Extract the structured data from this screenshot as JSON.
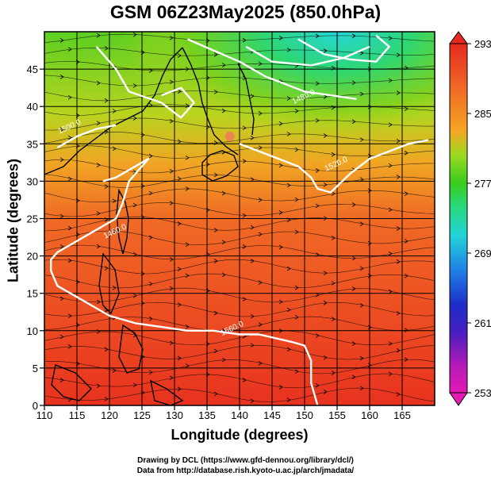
{
  "title": "GSM 06Z23May2025 (850.0hPa)",
  "chart_data": {
    "type": "heatmap",
    "title": "GSM 06Z23May2025 (850.0hPa)",
    "xlabel": "Longitude (degrees)",
    "ylabel": "Latitude  (degrees)",
    "xlim": [
      110,
      170
    ],
    "ylim": [
      0,
      50
    ],
    "x_ticks": [
      110,
      115,
      120,
      125,
      130,
      135,
      140,
      145,
      150,
      155,
      160,
      165
    ],
    "y_ticks": [
      0,
      5,
      10,
      15,
      20,
      25,
      30,
      35,
      40,
      45
    ],
    "colorbar": {
      "min": 253,
      "max": 293,
      "ticks": [
        253,
        261,
        269,
        277,
        285,
        293
      ],
      "colors": [
        "#e619b3",
        "#7a1fb8",
        "#1d2cc8",
        "#1f8fe6",
        "#22d3d8",
        "#27d97e",
        "#38cc1e",
        "#9bd91f",
        "#e6e61f",
        "#f5a623",
        "#f06a25",
        "#e62a1f"
      ]
    },
    "contour_labels": [
      {
        "text": "1460.0",
        "lon": 121,
        "lat": 23
      },
      {
        "text": "1520.0",
        "lon": 155,
        "lat": 32
      },
      {
        "text": "1480.0",
        "lon": 150,
        "lat": 41
      },
      {
        "text": "1500.0",
        "lon": 114,
        "lat": 37
      },
      {
        "text": "1560.0",
        "lon": 139,
        "lat": 10
      }
    ],
    "contours": [
      {
        "points": [
          [
            118,
            48
          ],
          [
            121,
            45
          ],
          [
            123,
            42
          ],
          [
            128,
            40.5
          ],
          [
            131,
            38.5
          ],
          [
            133,
            40.5
          ],
          [
            131,
            42.5
          ],
          [
            128,
            41.5
          ]
        ]
      },
      {
        "points": [
          [
            132,
            49
          ],
          [
            136,
            47.5
          ],
          [
            140,
            46
          ],
          [
            144,
            44
          ],
          [
            147,
            43
          ],
          [
            150,
            42
          ],
          [
            154,
            41.5
          ],
          [
            158,
            41
          ]
        ]
      },
      {
        "points": [
          [
            141,
            48
          ],
          [
            145,
            46
          ],
          [
            151,
            45.5
          ],
          [
            156,
            46.5
          ],
          [
            160,
            48
          ]
        ]
      },
      {
        "points": [
          [
            149,
            49
          ],
          [
            153,
            47
          ],
          [
            157,
            46.3
          ],
          [
            161,
            46
          ],
          [
            163,
            48
          ],
          [
            161,
            49.5
          ]
        ]
      },
      {
        "points": [
          [
            140,
            35
          ],
          [
            143,
            34
          ],
          [
            146,
            33
          ],
          [
            149,
            32
          ],
          [
            151,
            30.5
          ],
          [
            152,
            29
          ],
          [
            154,
            28.5
          ],
          [
            157,
            31
          ],
          [
            160,
            33
          ],
          [
            163,
            34
          ],
          [
            166,
            35
          ],
          [
            169,
            35.5
          ]
        ]
      },
      {
        "points": [
          [
            119,
            30
          ],
          [
            121,
            30.5
          ],
          [
            124,
            32
          ],
          [
            126,
            33
          ],
          [
            123,
            30
          ],
          [
            122,
            27
          ],
          [
            121,
            25
          ],
          [
            117,
            23
          ],
          [
            114,
            21.5
          ],
          [
            112,
            20.5
          ],
          [
            111,
            19.5
          ],
          [
            111,
            18
          ],
          [
            112,
            16
          ],
          [
            116,
            14
          ],
          [
            120,
            12
          ],
          [
            124,
            11
          ],
          [
            128,
            10.5
          ],
          [
            132,
            10
          ],
          [
            136,
            10
          ],
          [
            140,
            9.5
          ],
          [
            143,
            9.5
          ],
          [
            148,
            8.5
          ],
          [
            150,
            8
          ],
          [
            151,
            6
          ],
          [
            151,
            3
          ],
          [
            152,
            0
          ]
        ]
      },
      {
        "points": [
          [
            112,
            34.5
          ],
          [
            115,
            36
          ],
          [
            118,
            37
          ],
          [
            121,
            37.5
          ]
        ]
      }
    ],
    "warm_spot": {
      "lon": 138.5,
      "lat": 36,
      "value": 293
    }
  },
  "credits": {
    "line1": "Drawing by DCL (https://www.gfd-dennou.org/library/dcl/)",
    "line2": "Data from http://database.rish.kyoto-u.ac.jp/arch/jmadata/"
  }
}
